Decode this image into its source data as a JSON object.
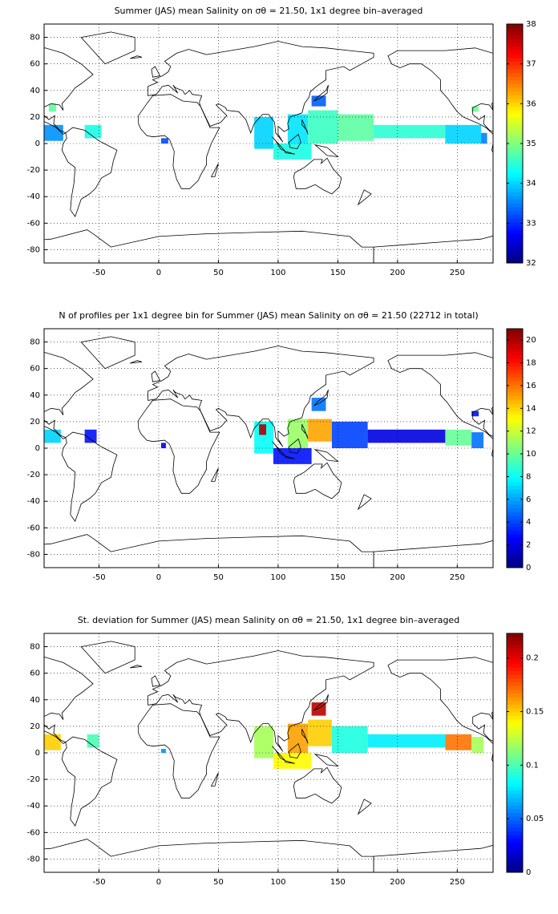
{
  "chart_data": [
    {
      "type": "map",
      "title": "Summer (JAS) mean Salinity on σθ = 21.50, 1x1 degree bin–averaged",
      "xlim": [
        -96,
        280
      ],
      "ylim": [
        -90,
        90
      ],
      "xticks": [
        -50,
        0,
        50,
        100,
        150,
        200,
        250
      ],
      "yticks": [
        -80,
        -60,
        -40,
        -20,
        0,
        20,
        40,
        60,
        80
      ],
      "grid": true,
      "colormap": "jet",
      "colorbar": {
        "lim": [
          32,
          38
        ],
        "ticks": [
          32,
          33,
          34,
          35,
          36,
          37,
          38
        ]
      },
      "cells": [
        {
          "lon": [
            -96,
            -80
          ],
          "lat": [
            2,
            14
          ],
          "value": 33.6
        },
        {
          "lon": [
            -92,
            -86
          ],
          "lat": [
            24,
            30
          ],
          "value": 34.8
        },
        {
          "lon": [
            -62,
            -48
          ],
          "lat": [
            4,
            14
          ],
          "value": 34.4
        },
        {
          "lon": [
            2,
            8
          ],
          "lat": [
            0,
            4
          ],
          "value": 33.2
        },
        {
          "lon": [
            80,
            96
          ],
          "lat": [
            -4,
            20
          ],
          "value": 34.0
        },
        {
          "lon": [
            96,
            128
          ],
          "lat": [
            -12,
            0
          ],
          "value": 34.4
        },
        {
          "lon": [
            108,
            125
          ],
          "lat": [
            0,
            22
          ],
          "value": 34.1
        },
        {
          "lon": [
            125,
            150
          ],
          "lat": [
            0,
            25
          ],
          "value": 34.6
        },
        {
          "lon": [
            128,
            140
          ],
          "lat": [
            28,
            36
          ],
          "value": 33.3
        },
        {
          "lon": [
            150,
            180
          ],
          "lat": [
            2,
            22
          ],
          "value": 34.8
        },
        {
          "lon": [
            180,
            240
          ],
          "lat": [
            4,
            14
          ],
          "value": 34.5
        },
        {
          "lon": [
            240,
            270
          ],
          "lat": [
            0,
            14
          ],
          "value": 34.0
        },
        {
          "lon": [
            262,
            268
          ],
          "lat": [
            24,
            28
          ],
          "value": 34.9
        },
        {
          "lon": [
            270,
            275
          ],
          "lat": [
            0,
            8
          ],
          "value": 33.5
        }
      ]
    },
    {
      "type": "map",
      "title": "N of profiles per 1x1 degree bin for Summer (JAS) mean Salinity on σθ = 21.50 (22712 in total)",
      "xlim": [
        -96,
        280
      ],
      "ylim": [
        -90,
        90
      ],
      "xticks": [
        -50,
        0,
        50,
        100,
        150,
        200,
        250
      ],
      "yticks": [
        -80,
        -60,
        -40,
        -20,
        0,
        20,
        40,
        60,
        80
      ],
      "grid": true,
      "colormap": "jet",
      "colorbar": {
        "lim": [
          0,
          21
        ],
        "ticks": [
          0,
          2,
          4,
          6,
          8,
          10,
          12,
          14,
          16,
          18,
          20
        ]
      },
      "cells": [
        {
          "lon": [
            -96,
            -82
          ],
          "lat": [
            4,
            14
          ],
          "value": 7
        },
        {
          "lon": [
            -62,
            -52
          ],
          "lat": [
            4,
            14
          ],
          "value": 3
        },
        {
          "lon": [
            2,
            6
          ],
          "lat": [
            0,
            4
          ],
          "value": 2
        },
        {
          "lon": [
            80,
            96
          ],
          "lat": [
            -4,
            20
          ],
          "value": 8
        },
        {
          "lon": [
            84,
            90
          ],
          "lat": [
            10,
            18
          ],
          "value": 20
        },
        {
          "lon": [
            96,
            128
          ],
          "lat": [
            -12,
            0
          ],
          "value": 3
        },
        {
          "lon": [
            108,
            125
          ],
          "lat": [
            0,
            22
          ],
          "value": 11
        },
        {
          "lon": [
            125,
            145
          ],
          "lat": [
            5,
            22
          ],
          "value": 15
        },
        {
          "lon": [
            128,
            140
          ],
          "lat": [
            28,
            38
          ],
          "value": 5
        },
        {
          "lon": [
            145,
            175
          ],
          "lat": [
            0,
            20
          ],
          "value": 4
        },
        {
          "lon": [
            175,
            240
          ],
          "lat": [
            4,
            14
          ],
          "value": 2
        },
        {
          "lon": [
            240,
            262
          ],
          "lat": [
            2,
            14
          ],
          "value": 10
        },
        {
          "lon": [
            262,
            272
          ],
          "lat": [
            0,
            12
          ],
          "value": 5
        },
        {
          "lon": [
            262,
            268
          ],
          "lat": [
            24,
            28
          ],
          "value": 3
        }
      ]
    },
    {
      "type": "map",
      "title": "St. deviation for Summer (JAS) mean Salinity on σθ = 21.50, 1x1 degree bin–averaged",
      "xlim": [
        -96,
        280
      ],
      "ylim": [
        -90,
        90
      ],
      "xticks": [
        -50,
        0,
        50,
        100,
        150,
        200,
        250
      ],
      "yticks": [
        -80,
        -60,
        -40,
        -20,
        0,
        20,
        40,
        60,
        80
      ],
      "grid": true,
      "colormap": "jet",
      "colorbar": {
        "lim": [
          0,
          0.223
        ],
        "ticks": [
          0,
          0.05,
          0.1,
          0.15,
          0.2
        ]
      },
      "cells": [
        {
          "lon": [
            -96,
            -82
          ],
          "lat": [
            2,
            14
          ],
          "value": 0.15
        },
        {
          "lon": [
            -60,
            -50
          ],
          "lat": [
            4,
            14
          ],
          "value": 0.1
        },
        {
          "lon": [
            2,
            6
          ],
          "lat": [
            0,
            3
          ],
          "value": 0.06
        },
        {
          "lon": [
            80,
            96
          ],
          "lat": [
            -4,
            20
          ],
          "value": 0.12
        },
        {
          "lon": [
            96,
            128
          ],
          "lat": [
            -12,
            0
          ],
          "value": 0.14
        },
        {
          "lon": [
            108,
            125
          ],
          "lat": [
            0,
            22
          ],
          "value": 0.16
        },
        {
          "lon": [
            125,
            145
          ],
          "lat": [
            5,
            25
          ],
          "value": 0.15
        },
        {
          "lon": [
            128,
            140
          ],
          "lat": [
            28,
            38
          ],
          "value": 0.21
        },
        {
          "lon": [
            145,
            175
          ],
          "lat": [
            0,
            20
          ],
          "value": 0.09
        },
        {
          "lon": [
            175,
            240
          ],
          "lat": [
            4,
            14
          ],
          "value": 0.08
        },
        {
          "lon": [
            240,
            262
          ],
          "lat": [
            2,
            14
          ],
          "value": 0.17
        },
        {
          "lon": [
            262,
            272
          ],
          "lat": [
            0,
            12
          ],
          "value": 0.12
        }
      ]
    }
  ]
}
